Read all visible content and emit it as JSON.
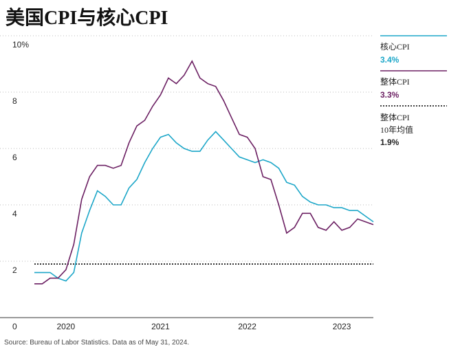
{
  "chart_data": {
    "type": "line",
    "title": "美国CPI与核心CPI",
    "source": "Source: Bureau of Labor Statistics. Data as of May 31, 2024.",
    "categories": [
      null,
      null,
      null,
      null,
      "2020",
      null,
      null,
      null,
      null,
      null,
      null,
      null,
      null,
      null,
      null,
      null,
      "2021",
      null,
      null,
      null,
      null,
      null,
      null,
      null,
      null,
      null,
      null,
      "2022",
      null,
      null,
      null,
      null,
      null,
      null,
      null,
      null,
      null,
      null,
      null,
      "2023",
      null,
      null,
      null,
      null
    ],
    "series": [
      {
        "name": "核心CPI",
        "color": "#1ba6c8",
        "end_label": "3.4%",
        "values": [
          1.6,
          1.6,
          1.6,
          1.4,
          1.3,
          1.6,
          3.0,
          3.8,
          4.5,
          4.3,
          4.0,
          4.0,
          4.6,
          4.9,
          5.5,
          6.0,
          6.4,
          6.5,
          6.2,
          6.0,
          5.9,
          5.9,
          6.3,
          6.6,
          6.3,
          6.0,
          5.7,
          5.6,
          5.5,
          5.6,
          5.5,
          5.3,
          4.8,
          4.7,
          4.3,
          4.1,
          4.0,
          4.0,
          3.9,
          3.9,
          3.8,
          3.8,
          3.6,
          3.4
        ]
      },
      {
        "name": "整体CPI",
        "color": "#6b1f62",
        "end_label": "3.3%",
        "values": [
          1.2,
          1.2,
          1.4,
          1.4,
          1.7,
          2.6,
          4.2,
          5.0,
          5.4,
          5.4,
          5.3,
          5.4,
          6.2,
          6.8,
          7.0,
          7.5,
          7.9,
          8.5,
          8.3,
          8.6,
          9.1,
          8.5,
          8.3,
          8.2,
          7.7,
          7.1,
          6.5,
          6.4,
          6.0,
          5.0,
          4.9,
          4.0,
          3.0,
          3.2,
          3.7,
          3.7,
          3.2,
          3.1,
          3.4,
          3.1,
          3.2,
          3.5,
          3.4,
          3.3
        ]
      }
    ],
    "reference_line": {
      "name_lines": [
        "整体CPI",
        "10年均值"
      ],
      "value": 1.9,
      "label": "1.9%",
      "color": "#000000"
    },
    "ylim": [
      0,
      10
    ],
    "yticks": [
      0,
      2,
      4,
      6,
      8,
      {
        "value": 10,
        "label": "10%"
      }
    ],
    "grid": true
  }
}
